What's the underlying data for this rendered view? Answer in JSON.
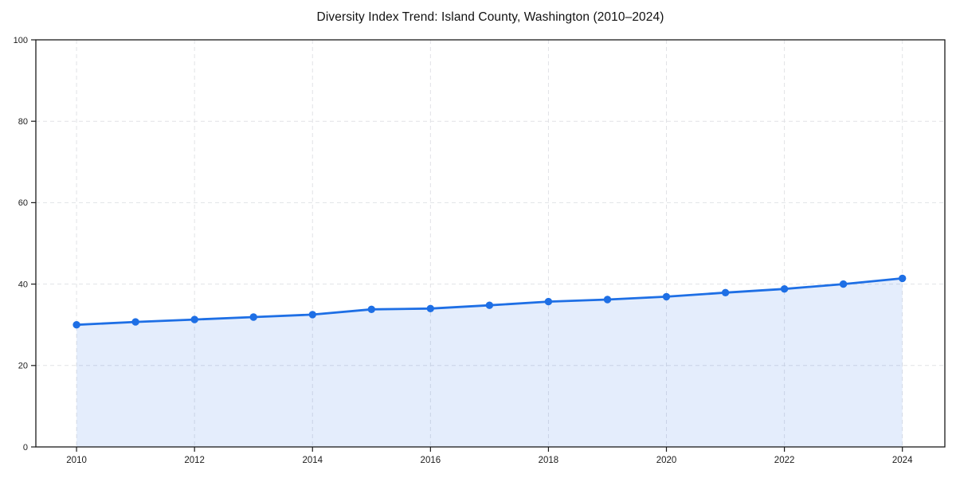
{
  "chart_data": {
    "type": "area",
    "title": "Diversity Index Trend: Island County, Washington (2010–2024)",
    "xlabel": "",
    "ylabel": "",
    "x": [
      2010,
      2011,
      2012,
      2013,
      2014,
      2015,
      2016,
      2017,
      2018,
      2019,
      2020,
      2021,
      2022,
      2023,
      2024
    ],
    "series": [
      {
        "name": "Diversity Index",
        "values": [
          30.0,
          30.7,
          31.3,
          31.9,
          32.5,
          33.8,
          34.0,
          34.8,
          35.7,
          36.2,
          36.9,
          37.9,
          38.8,
          40.0,
          41.4
        ]
      }
    ],
    "xlim": [
      2009.31,
      2024.72
    ],
    "ylim": [
      0,
      100
    ],
    "xticks": [
      2010,
      2012,
      2014,
      2016,
      2018,
      2020,
      2022,
      2024
    ],
    "yticks": [
      0,
      20,
      40,
      60,
      80,
      100
    ],
    "grid": true,
    "grid_style": "dashed",
    "legend": "none",
    "colors": {
      "line": "#1e6fe5",
      "marker": "#1e6fe5",
      "fill": "#1e6fe5",
      "fill_opacity": 0.12,
      "grid": "#e1e2e6",
      "axis": "#1a1a1a",
      "tick_label": "#1c1c1c",
      "title": "#111111",
      "background": "#ffffff"
    }
  }
}
